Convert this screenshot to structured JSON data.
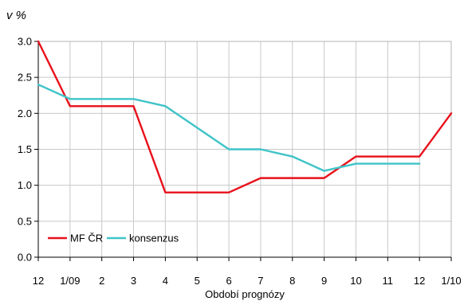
{
  "chart_data": {
    "type": "line",
    "title": "",
    "unit_label": "v %",
    "xlabel": "Období prognózy",
    "ylabel": "",
    "categories": [
      "12",
      "1/09",
      "2",
      "3",
      "4",
      "5",
      "6",
      "7",
      "8",
      "9",
      "10",
      "11",
      "12",
      "1/10"
    ],
    "ylim": [
      0,
      3
    ],
    "yticks": [
      "0.0",
      "0.5",
      "1.0",
      "1.5",
      "2.0",
      "2.5",
      "3.0"
    ],
    "grid": true,
    "legend_position": "bottom-left",
    "series": [
      {
        "name": "MF ČR",
        "color": "#e8111b",
        "values": [
          3.0,
          2.1,
          2.1,
          2.1,
          0.9,
          0.9,
          0.9,
          1.1,
          1.1,
          1.1,
          1.4,
          1.4,
          1.4,
          2.0
        ]
      },
      {
        "name": "konsenzus",
        "color": "#3fc4c8",
        "values": [
          2.4,
          2.2,
          2.2,
          2.2,
          2.1,
          1.8,
          1.5,
          1.5,
          1.4,
          1.2,
          1.3,
          1.3,
          1.3,
          null
        ]
      }
    ]
  }
}
